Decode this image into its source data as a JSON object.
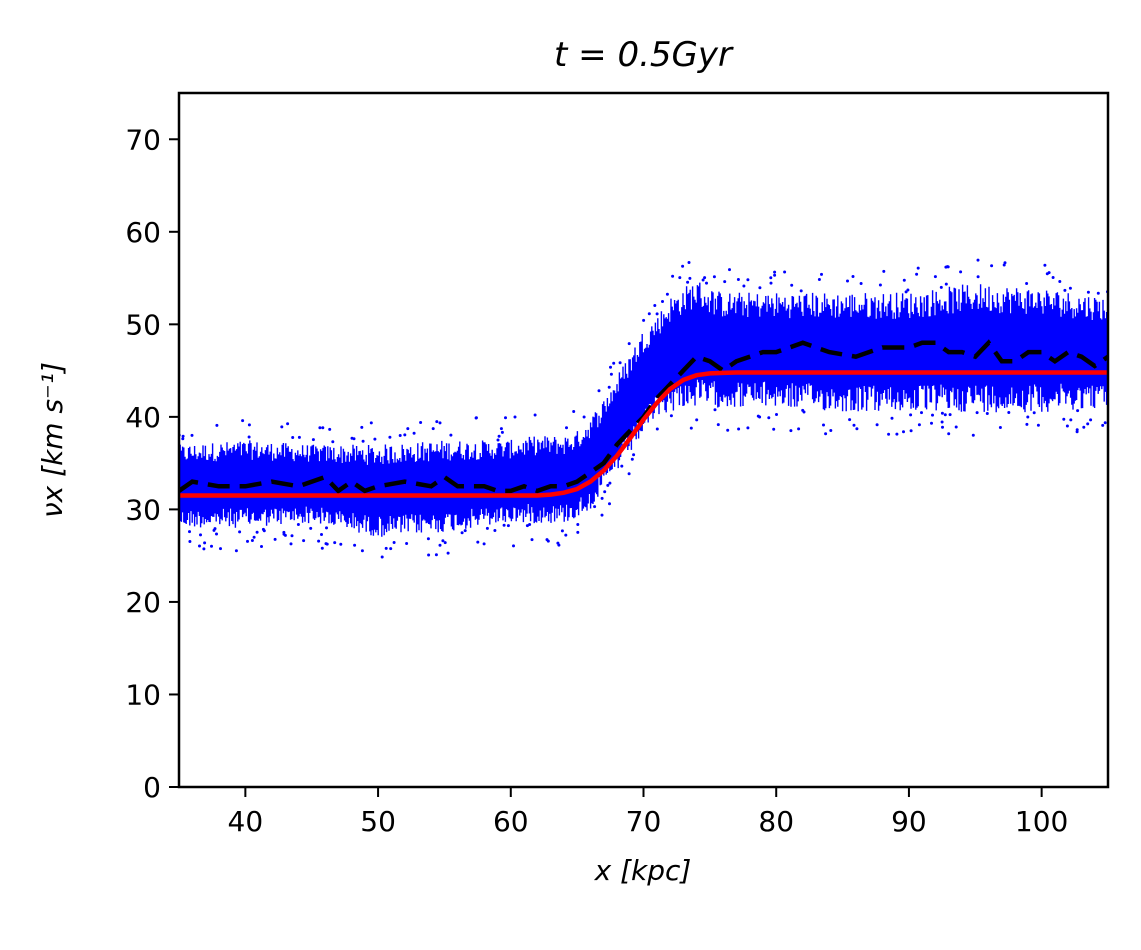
{
  "chart_data": {
    "type": "scatter",
    "title": "t = 0.5Gyr",
    "xlabel": "x [kpc]",
    "ylabel": "νx [km s⁻¹]",
    "xlim": [
      35,
      105
    ],
    "ylim": [
      0,
      75
    ],
    "x_ticks": [
      40,
      50,
      60,
      70,
      80,
      90,
      100
    ],
    "y_ticks": [
      0,
      10,
      20,
      30,
      40,
      50,
      60,
      70
    ],
    "grid": false,
    "legend": "none",
    "colors": {
      "scatter": "#0000ff",
      "fit_line": "#ff0000",
      "mean_line": "#000000"
    },
    "series": [
      {
        "kind": "scatter-band",
        "x": [
          35,
          40,
          45,
          50,
          55,
          60,
          62,
          64,
          65,
          66,
          67,
          68,
          69,
          70,
          71,
          72,
          73,
          74,
          75,
          76,
          78,
          80,
          85,
          90,
          95,
          100,
          105
        ],
        "lower": [
          28,
          28,
          28.5,
          27,
          27.5,
          28.5,
          28.5,
          28.5,
          29,
          30,
          32,
          34,
          36,
          38,
          40,
          40.5,
          41,
          41,
          41,
          41,
          41,
          41,
          40.5,
          40.5,
          40.5,
          40.5,
          41
        ],
        "upper": [
          37,
          37.5,
          37,
          37,
          37.5,
          37.5,
          38,
          38,
          38.5,
          40,
          42,
          44.5,
          47,
          49.5,
          51,
          53,
          54,
          55,
          54,
          53.5,
          53.5,
          53.5,
          53.5,
          53.5,
          54.5,
          54,
          53
        ]
      },
      {
        "kind": "mean-dashed",
        "x": [
          35,
          36,
          38,
          40,
          42,
          44,
          46,
          47,
          48,
          49,
          50,
          52,
          54,
          55,
          56,
          58,
          59,
          60,
          61,
          62,
          63,
          64,
          65,
          66,
          67,
          68,
          69,
          70,
          71,
          72,
          73,
          74,
          75,
          76,
          77,
          78,
          79,
          80,
          81,
          82,
          84,
          86,
          88,
          89,
          90,
          91,
          92,
          93,
          94,
          95,
          96,
          97,
          98,
          99,
          100,
          101,
          102,
          103,
          104,
          105
        ],
        "y": [
          32,
          33,
          32.5,
          32.5,
          33,
          32.5,
          33.5,
          32,
          33,
          32,
          32.5,
          33,
          32.5,
          33.5,
          32.5,
          32.5,
          32,
          32,
          32.5,
          32,
          32.5,
          32.5,
          33,
          34,
          35,
          37,
          38.5,
          40,
          42,
          43.5,
          45,
          46.5,
          46,
          45,
          46,
          46.5,
          47,
          47,
          47.5,
          48,
          47,
          46.5,
          47.5,
          47.5,
          47.5,
          48,
          48,
          47,
          47,
          46.5,
          48,
          46,
          46,
          47,
          47,
          46,
          47,
          46.5,
          45.5,
          46.5
        ]
      },
      {
        "kind": "fit-line",
        "x": [
          35,
          40,
          45,
          50,
          55,
          60,
          62,
          63,
          64,
          65,
          66,
          67,
          68,
          69,
          70,
          71,
          72,
          73,
          74,
          75,
          76,
          77,
          78,
          80,
          85,
          90,
          95,
          100,
          105
        ],
        "y": [
          31.5,
          31.5,
          31.5,
          31.5,
          31.5,
          31.5,
          31.5,
          31.6,
          31.8,
          32.2,
          33,
          34.2,
          35.8,
          37.7,
          39.7,
          41.5,
          43,
          44,
          44.5,
          44.7,
          44.75,
          44.8,
          44.8,
          44.8,
          44.8,
          44.8,
          44.8,
          44.8,
          44.8
        ]
      }
    ]
  }
}
